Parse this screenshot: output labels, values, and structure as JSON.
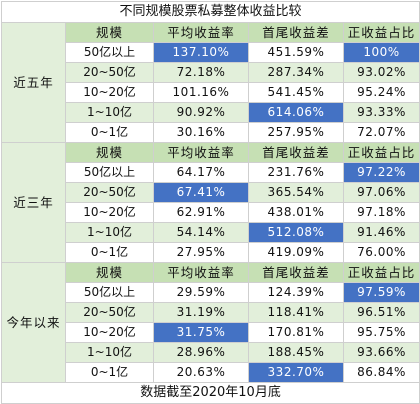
{
  "title": "不同规模股票私募整体收益比较",
  "headers": [
    "规模",
    "平均收益率",
    "首尾收益差",
    "正收益占比"
  ],
  "footer": "数据截至2020年10月底",
  "highlight_color": "#4472c4",
  "header_color": "#c6e0b4",
  "band_color": "#e2efda",
  "sections": [
    {
      "period": "近五年",
      "rows": [
        {
          "scale": "50亿以上",
          "avg": "137.10%",
          "diff": "451.59%",
          "pos": "100%",
          "hl": [
            1,
            3
          ]
        },
        {
          "scale": "20~50亿",
          "avg": "72.18%",
          "diff": "287.34%",
          "pos": "93.02%",
          "hl": []
        },
        {
          "scale": "10~20亿",
          "avg": "101.16%",
          "diff": "541.45%",
          "pos": "95.24%",
          "hl": []
        },
        {
          "scale": "1~10亿",
          "avg": "90.92%",
          "diff": "614.06%",
          "pos": "93.33%",
          "hl": [
            2
          ]
        },
        {
          "scale": "0~1亿",
          "avg": "30.16%",
          "diff": "257.95%",
          "pos": "72.07%",
          "hl": []
        }
      ]
    },
    {
      "period": "近三年",
      "rows": [
        {
          "scale": "50亿以上",
          "avg": "64.17%",
          "diff": "231.76%",
          "pos": "97.22%",
          "hl": [
            3
          ]
        },
        {
          "scale": "20~50亿",
          "avg": "67.41%",
          "diff": "365.54%",
          "pos": "97.06%",
          "hl": [
            1
          ]
        },
        {
          "scale": "10~20亿",
          "avg": "62.91%",
          "diff": "438.01%",
          "pos": "97.18%",
          "hl": []
        },
        {
          "scale": "1~10亿",
          "avg": "54.14%",
          "diff": "512.08%",
          "pos": "91.46%",
          "hl": [
            2
          ]
        },
        {
          "scale": "0~1亿",
          "avg": "27.95%",
          "diff": "419.09%",
          "pos": "76.00%",
          "hl": []
        }
      ]
    },
    {
      "period": "今年以来",
      "rows": [
        {
          "scale": "50亿以上",
          "avg": "29.59%",
          "diff": "124.39%",
          "pos": "97.59%",
          "hl": [
            3
          ]
        },
        {
          "scale": "20~50亿",
          "avg": "31.19%",
          "diff": "118.41%",
          "pos": "96.51%",
          "hl": []
        },
        {
          "scale": "10~20亿",
          "avg": "31.75%",
          "diff": "170.81%",
          "pos": "95.75%",
          "hl": [
            1
          ]
        },
        {
          "scale": "1~10亿",
          "avg": "28.96%",
          "diff": "188.45%",
          "pos": "93.66%",
          "hl": []
        },
        {
          "scale": "0~1亿",
          "avg": "20.63%",
          "diff": "332.70%",
          "pos": "86.84%",
          "hl": [
            2
          ]
        }
      ]
    }
  ]
}
